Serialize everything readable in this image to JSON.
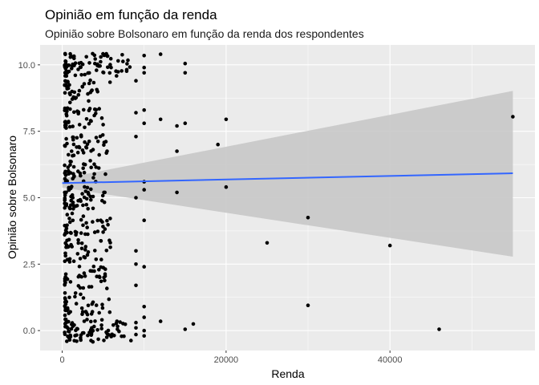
{
  "chart_data": {
    "type": "scatter",
    "title": "Opinião em função da renda",
    "subtitle": "Opinião sobre Bolsonaro em função da renda dos respondentes",
    "xlabel": "Renda",
    "ylabel": "Opinião sobre Bolsonaro",
    "xlim": [
      -2700,
      57700
    ],
    "ylim": [
      -0.75,
      10.75
    ],
    "x_ticks": [
      0,
      20000,
      40000
    ],
    "x_tick_labels": [
      "0",
      "20000",
      "40000"
    ],
    "y_ticks": [
      0,
      2.5,
      5,
      7.5,
      10
    ],
    "y_tick_labels": [
      "0.0",
      "2.5",
      "5.0",
      "7.5",
      "10.0"
    ],
    "grid": true,
    "smooth": {
      "method": "lm",
      "x_range": [
        0,
        55000
      ],
      "fit": [
        5.55,
        5.92
      ],
      "ci_lower": [
        5.38,
        2.78
      ],
      "ci_upper": [
        5.72,
        9.02
      ]
    },
    "colors": {
      "panel": "#ebebeb",
      "grid_major": "#ffffff",
      "points": "#000000",
      "fit_line": "#3366ff",
      "ribbon": "#c8c8c8"
    },
    "points": [
      [
        55000,
        8.05
      ],
      [
        46000,
        0.05
      ],
      [
        40000,
        3.2
      ],
      [
        30000,
        4.25
      ],
      [
        30000,
        0.95
      ],
      [
        25000,
        3.3
      ],
      [
        20000,
        7.95
      ],
      [
        20000,
        5.4
      ],
      [
        19000,
        7.0
      ],
      [
        16000,
        0.25
      ],
      [
        15000,
        10.05
      ],
      [
        15000,
        9.7
      ],
      [
        15000,
        7.8
      ],
      [
        15000,
        0.05
      ],
      [
        14000,
        6.75
      ],
      [
        14000,
        5.2
      ],
      [
        14000,
        7.7
      ],
      [
        12000,
        10.4
      ],
      [
        12000,
        7.95
      ],
      [
        12000,
        0.35
      ],
      [
        10000,
        10.35
      ],
      [
        10000,
        9.7
      ],
      [
        10000,
        9.9
      ],
      [
        10000,
        8.3
      ],
      [
        10000,
        7.8
      ],
      [
        10000,
        5.3
      ],
      [
        10000,
        5.6
      ],
      [
        10000,
        4.15
      ],
      [
        10000,
        2.4
      ],
      [
        10000,
        0.9
      ],
      [
        10000,
        0.5
      ],
      [
        10000,
        -0.2
      ],
      [
        10000,
        0.0
      ],
      [
        9000,
        8.2
      ],
      [
        9000,
        7.3
      ],
      [
        9000,
        9.4
      ],
      [
        9000,
        5.0
      ],
      [
        9000,
        3.0
      ],
      [
        9000,
        2.5
      ],
      [
        9000,
        1.7
      ],
      [
        9000,
        -0.15
      ],
      [
        9000,
        0.3
      ],
      [
        9000,
        0.1
      ]
    ]
  }
}
